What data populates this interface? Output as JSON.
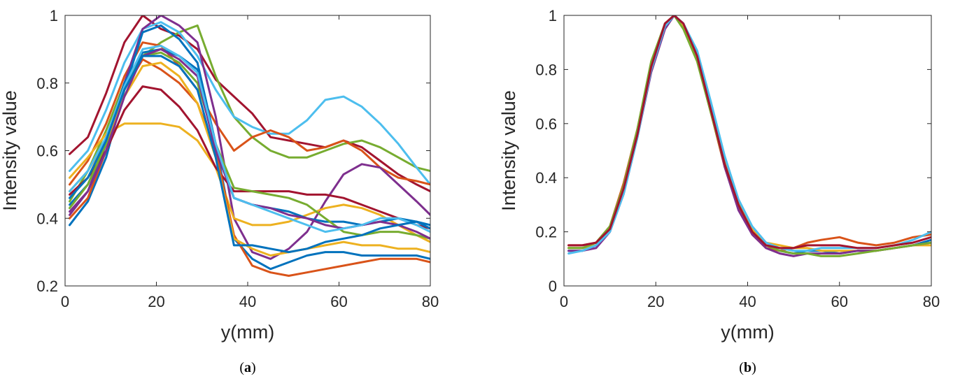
{
  "palette": [
    "#0072bd",
    "#d95319",
    "#edb120",
    "#7e2f8e",
    "#77ac30",
    "#4dbeee",
    "#a2142f"
  ],
  "chart_data": [
    {
      "id": "a",
      "type": "line",
      "caption_prefix": "(",
      "caption_letter": "a",
      "caption_suffix": ")",
      "xlabel": "y(mm)",
      "ylabel": "Intensity value",
      "xlim": [
        0,
        80
      ],
      "ylim": [
        0.2,
        1
      ],
      "xticks": [
        "0",
        "20",
        "40",
        "60",
        "80"
      ],
      "yticks": [
        "0.2",
        "0.4",
        "0.6",
        "0.8",
        "1"
      ],
      "grid": false,
      "x": [
        1,
        5,
        9,
        13,
        17,
        21,
        25,
        29,
        33,
        37,
        41,
        45,
        49,
        53,
        57,
        61,
        65,
        69,
        73,
        77,
        80
      ],
      "series": [
        {
          "color_index": 6,
          "values": [
            0.59,
            0.64,
            0.77,
            0.92,
            1.0,
            0.96,
            0.94,
            0.9,
            0.81,
            0.76,
            0.71,
            0.64,
            0.63,
            0.62,
            0.61,
            0.63,
            0.61,
            0.57,
            0.53,
            0.5,
            0.48
          ]
        },
        {
          "color_index": 4,
          "values": [
            0.45,
            0.54,
            0.66,
            0.8,
            0.88,
            0.92,
            0.95,
            0.97,
            0.82,
            0.7,
            0.64,
            0.6,
            0.58,
            0.58,
            0.6,
            0.62,
            0.63,
            0.61,
            0.58,
            0.55,
            0.54
          ]
        },
        {
          "color_index": 5,
          "values": [
            0.54,
            0.6,
            0.72,
            0.86,
            0.96,
            0.98,
            0.95,
            0.88,
            0.78,
            0.7,
            0.67,
            0.65,
            0.65,
            0.69,
            0.75,
            0.76,
            0.73,
            0.68,
            0.62,
            0.55,
            0.5
          ]
        },
        {
          "color_index": 1,
          "values": [
            0.5,
            0.57,
            0.68,
            0.82,
            0.92,
            0.91,
            0.85,
            0.78,
            0.68,
            0.6,
            0.64,
            0.66,
            0.64,
            0.6,
            0.61,
            0.63,
            0.6,
            0.55,
            0.52,
            0.51,
            0.5
          ]
        },
        {
          "color_index": 3,
          "values": [
            0.41,
            0.48,
            0.62,
            0.8,
            0.96,
            1.0,
            0.97,
            0.92,
            0.7,
            0.4,
            0.3,
            0.28,
            0.31,
            0.36,
            0.45,
            0.53,
            0.56,
            0.55,
            0.5,
            0.45,
            0.41
          ]
        },
        {
          "color_index": 0,
          "values": [
            0.38,
            0.45,
            0.58,
            0.78,
            0.95,
            0.97,
            0.93,
            0.86,
            0.62,
            0.34,
            0.28,
            0.25,
            0.27,
            0.29,
            0.3,
            0.3,
            0.29,
            0.29,
            0.29,
            0.29,
            0.28
          ]
        },
        {
          "color_index": 2,
          "values": [
            0.52,
            0.58,
            0.65,
            0.68,
            0.68,
            0.68,
            0.67,
            0.63,
            0.55,
            0.4,
            0.38,
            0.38,
            0.39,
            0.41,
            0.43,
            0.44,
            0.43,
            0.41,
            0.38,
            0.35,
            0.33
          ]
        },
        {
          "color_index": 6,
          "values": [
            0.47,
            0.52,
            0.6,
            0.72,
            0.79,
            0.78,
            0.73,
            0.66,
            0.55,
            0.48,
            0.48,
            0.48,
            0.48,
            0.47,
            0.47,
            0.46,
            0.44,
            0.42,
            0.4,
            0.38,
            0.37
          ]
        },
        {
          "color_index": 1,
          "values": [
            0.4,
            0.46,
            0.6,
            0.78,
            0.87,
            0.84,
            0.8,
            0.74,
            0.6,
            0.35,
            0.26,
            0.24,
            0.23,
            0.24,
            0.25,
            0.26,
            0.27,
            0.28,
            0.28,
            0.28,
            0.27
          ]
        },
        {
          "color_index": 0,
          "values": [
            0.44,
            0.5,
            0.62,
            0.8,
            0.89,
            0.9,
            0.88,
            0.84,
            0.62,
            0.46,
            0.44,
            0.43,
            0.42,
            0.4,
            0.39,
            0.39,
            0.38,
            0.39,
            0.4,
            0.39,
            0.37
          ]
        },
        {
          "color_index": 4,
          "values": [
            0.43,
            0.5,
            0.62,
            0.78,
            0.88,
            0.89,
            0.86,
            0.8,
            0.62,
            0.49,
            0.48,
            0.47,
            0.46,
            0.44,
            0.4,
            0.36,
            0.35,
            0.36,
            0.36,
            0.35,
            0.34
          ]
        },
        {
          "color_index": 2,
          "values": [
            0.48,
            0.54,
            0.63,
            0.76,
            0.85,
            0.86,
            0.82,
            0.74,
            0.58,
            0.34,
            0.31,
            0.29,
            0.3,
            0.31,
            0.32,
            0.33,
            0.32,
            0.32,
            0.31,
            0.31,
            0.3
          ]
        },
        {
          "color_index": 3,
          "values": [
            0.42,
            0.48,
            0.6,
            0.76,
            0.88,
            0.9,
            0.87,
            0.82,
            0.6,
            0.46,
            0.44,
            0.43,
            0.41,
            0.4,
            0.38,
            0.37,
            0.38,
            0.39,
            0.38,
            0.36,
            0.34
          ]
        },
        {
          "color_index": 5,
          "values": [
            0.48,
            0.54,
            0.64,
            0.79,
            0.9,
            0.91,
            0.88,
            0.83,
            0.62,
            0.46,
            0.44,
            0.42,
            0.4,
            0.38,
            0.36,
            0.37,
            0.38,
            0.4,
            0.4,
            0.38,
            0.36
          ]
        },
        {
          "color_index": 0,
          "values": [
            0.46,
            0.52,
            0.63,
            0.78,
            0.88,
            0.88,
            0.85,
            0.78,
            0.58,
            0.32,
            0.32,
            0.31,
            0.3,
            0.31,
            0.33,
            0.34,
            0.35,
            0.37,
            0.38,
            0.39,
            0.38
          ]
        }
      ]
    },
    {
      "id": "b",
      "type": "line",
      "caption_prefix": "(",
      "caption_letter": "b",
      "caption_suffix": ")",
      "xlabel": "y(mm)",
      "ylabel": "Intensity value",
      "xlim": [
        0,
        80
      ],
      "ylim": [
        0,
        1
      ],
      "xticks": [
        "0",
        "20",
        "40",
        "60",
        "80"
      ],
      "yticks": [
        "0",
        "0.2",
        "0.4",
        "0.6",
        "0.8",
        "1"
      ],
      "grid": false,
      "x": [
        1,
        4,
        7,
        10,
        13,
        16,
        19,
        22,
        24,
        26,
        29,
        32,
        35,
        38,
        41,
        44,
        47,
        50,
        53,
        56,
        60,
        64,
        68,
        72,
        76,
        80
      ],
      "series": [
        {
          "color_index": 0,
          "values": [
            0.13,
            0.13,
            0.15,
            0.2,
            0.35,
            0.56,
            0.8,
            0.96,
            1.0,
            0.97,
            0.85,
            0.66,
            0.45,
            0.3,
            0.2,
            0.15,
            0.13,
            0.12,
            0.13,
            0.13,
            0.12,
            0.13,
            0.13,
            0.14,
            0.15,
            0.17
          ]
        },
        {
          "color_index": 1,
          "values": [
            0.15,
            0.15,
            0.16,
            0.22,
            0.38,
            0.58,
            0.82,
            0.97,
            1.0,
            0.96,
            0.84,
            0.64,
            0.44,
            0.29,
            0.19,
            0.14,
            0.13,
            0.14,
            0.16,
            0.17,
            0.18,
            0.16,
            0.15,
            0.16,
            0.18,
            0.19
          ]
        },
        {
          "color_index": 2,
          "values": [
            0.14,
            0.14,
            0.15,
            0.21,
            0.36,
            0.57,
            0.81,
            0.96,
            1.0,
            0.96,
            0.84,
            0.65,
            0.46,
            0.31,
            0.21,
            0.16,
            0.15,
            0.14,
            0.14,
            0.13,
            0.13,
            0.13,
            0.13,
            0.14,
            0.15,
            0.15
          ]
        },
        {
          "color_index": 3,
          "values": [
            0.13,
            0.13,
            0.14,
            0.2,
            0.34,
            0.55,
            0.79,
            0.95,
            1.0,
            0.97,
            0.86,
            0.66,
            0.44,
            0.28,
            0.19,
            0.14,
            0.12,
            0.11,
            0.12,
            0.12,
            0.12,
            0.13,
            0.13,
            0.14,
            0.15,
            0.16
          ]
        },
        {
          "color_index": 4,
          "values": [
            0.14,
            0.14,
            0.16,
            0.22,
            0.37,
            0.58,
            0.83,
            0.97,
            1.0,
            0.95,
            0.83,
            0.64,
            0.45,
            0.3,
            0.2,
            0.15,
            0.13,
            0.12,
            0.12,
            0.11,
            0.11,
            0.12,
            0.13,
            0.14,
            0.15,
            0.16
          ]
        },
        {
          "color_index": 5,
          "values": [
            0.12,
            0.13,
            0.15,
            0.2,
            0.34,
            0.55,
            0.8,
            0.96,
            1.0,
            0.97,
            0.87,
            0.68,
            0.48,
            0.32,
            0.22,
            0.16,
            0.14,
            0.13,
            0.13,
            0.14,
            0.14,
            0.14,
            0.14,
            0.15,
            0.17,
            0.2
          ]
        },
        {
          "color_index": 6,
          "values": [
            0.15,
            0.15,
            0.16,
            0.21,
            0.36,
            0.56,
            0.81,
            0.97,
            1.0,
            0.97,
            0.85,
            0.65,
            0.45,
            0.3,
            0.2,
            0.15,
            0.14,
            0.14,
            0.15,
            0.15,
            0.15,
            0.14,
            0.14,
            0.15,
            0.16,
            0.18
          ]
        }
      ]
    }
  ]
}
